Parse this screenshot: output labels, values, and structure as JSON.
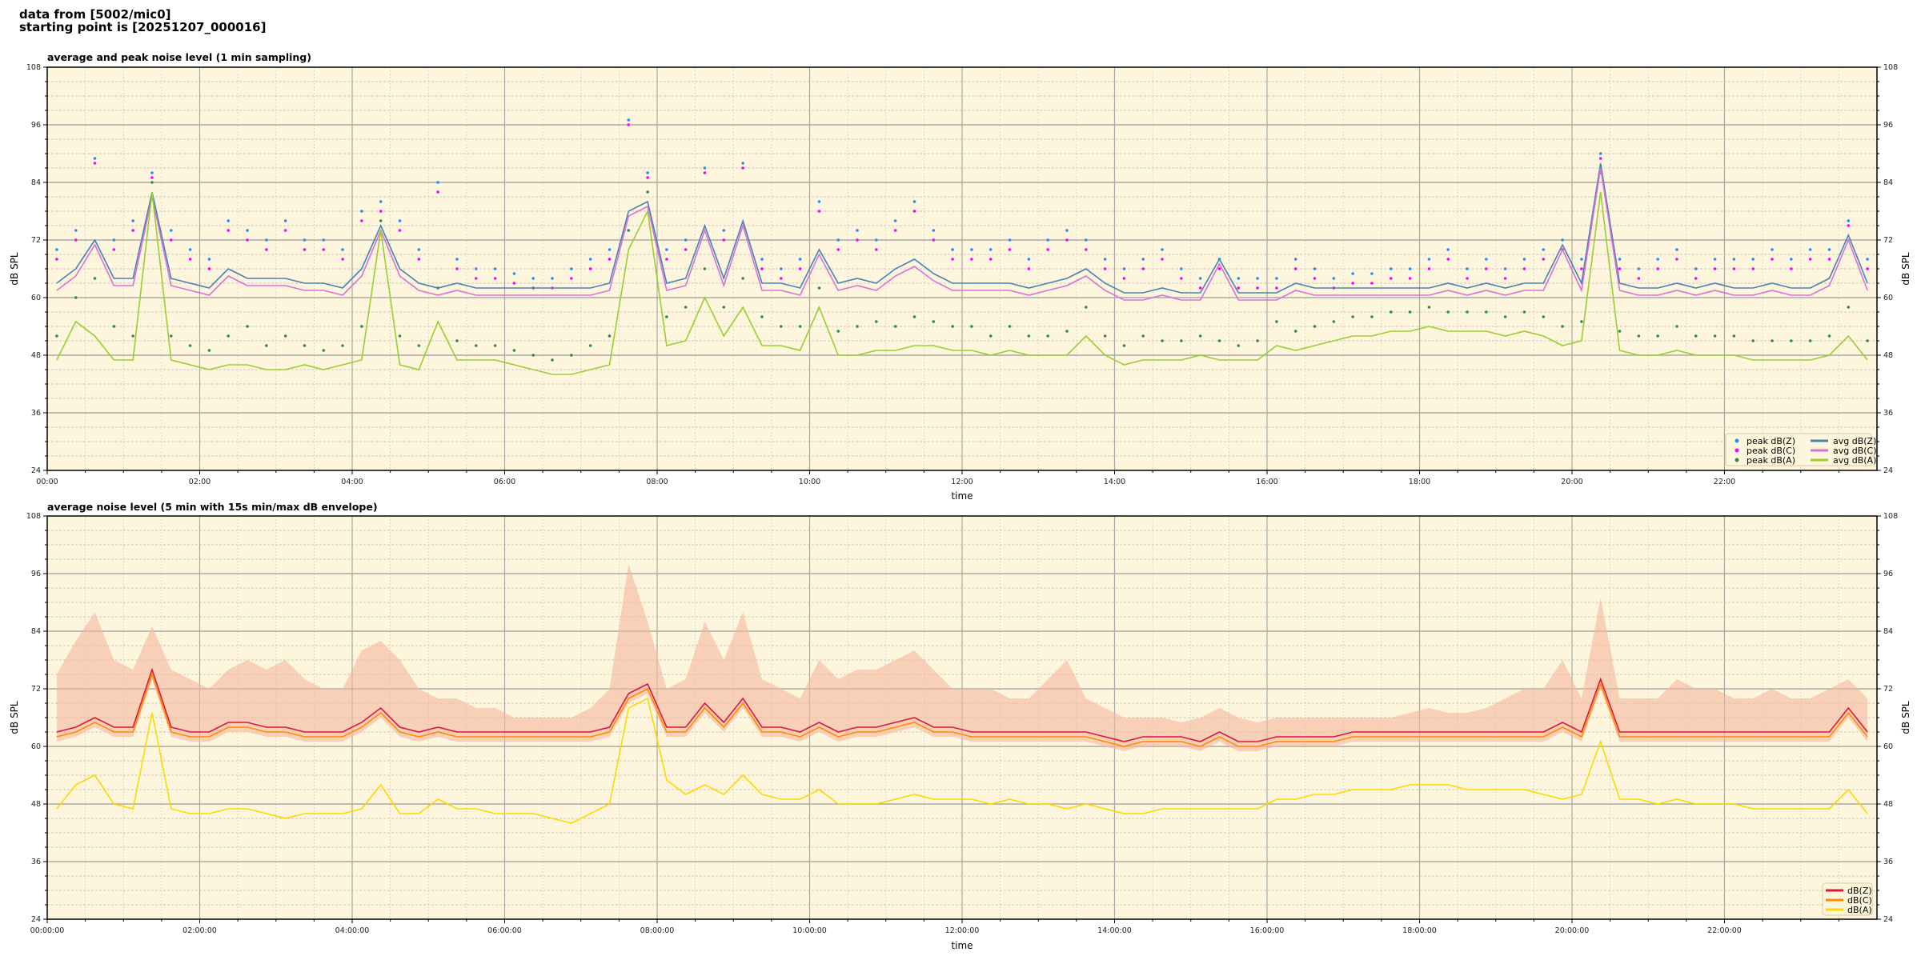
{
  "header": {
    "line1": "data from [5002/mic0]",
    "line2": "starting point is [20251207_000016]"
  },
  "colors": {
    "plot_bg": "#fef6dc",
    "peak_z": "#1e90ff",
    "peak_c": "#ff00ff",
    "peak_a": "#2e8b57",
    "avg_z": "#4682b4",
    "avg_c": "#da70d6",
    "avg_a": "#9acd32",
    "z": "#dc143c",
    "c": "#ff8c00",
    "a": "#ffd700",
    "envelope": "#f4b8a0"
  },
  "chart_data": [
    {
      "type": "line",
      "title": "average and peak noise level (1 min sampling)",
      "xlabel": "time",
      "ylabel": "dB SPL",
      "ylabel_right": "dB SPL",
      "ylim": [
        24,
        108
      ],
      "yticks": [
        "24",
        "36",
        "48",
        "60",
        "72",
        "84",
        "96",
        "108"
      ],
      "xlim_hours": [
        0,
        24
      ],
      "xticks": [
        "00:00",
        "02:00",
        "04:00",
        "06:00",
        "08:00",
        "10:00",
        "12:00",
        "14:00",
        "16:00",
        "18:00",
        "20:00",
        "22:00"
      ],
      "grid": true,
      "legend_position": "bottom-right",
      "x_step_minutes": 15,
      "series": [
        {
          "name": "peak dB(Z)",
          "kind": "scatter",
          "values": [
            70,
            74,
            89,
            72,
            76,
            86,
            74,
            70,
            68,
            76,
            74,
            72,
            76,
            72,
            72,
            70,
            78,
            80,
            76,
            70,
            84,
            68,
            66,
            66,
            65,
            64,
            64,
            66,
            68,
            70,
            97,
            86,
            70,
            72,
            87,
            74,
            88,
            68,
            66,
            68,
            80,
            72,
            74,
            72,
            76,
            80,
            74,
            70,
            70,
            70,
            72,
            68,
            72,
            74,
            72,
            68,
            66,
            68,
            70,
            66,
            64,
            68,
            64,
            64,
            64,
            68,
            66,
            64,
            65,
            65,
            66,
            66,
            68,
            70,
            66,
            68,
            66,
            68,
            70,
            72,
            68,
            90,
            68,
            66,
            68,
            70,
            66,
            68,
            68,
            68,
            70,
            68,
            70,
            70,
            76,
            68
          ]
        },
        {
          "name": "peak dB(C)",
          "kind": "scatter",
          "values": [
            68,
            72,
            88,
            70,
            74,
            85,
            72,
            68,
            66,
            74,
            72,
            70,
            74,
            70,
            70,
            68,
            76,
            78,
            74,
            68,
            82,
            66,
            64,
            64,
            63,
            62,
            62,
            64,
            66,
            68,
            96,
            85,
            68,
            70,
            86,
            72,
            87,
            66,
            64,
            66,
            78,
            70,
            72,
            70,
            74,
            78,
            72,
            68,
            68,
            68,
            70,
            66,
            70,
            72,
            70,
            66,
            64,
            66,
            68,
            64,
            62,
            66,
            62,
            62,
            62,
            66,
            64,
            62,
            63,
            63,
            64,
            64,
            66,
            68,
            64,
            66,
            64,
            66,
            68,
            70,
            66,
            89,
            66,
            64,
            66,
            68,
            64,
            66,
            66,
            66,
            68,
            66,
            68,
            68,
            75,
            66
          ]
        },
        {
          "name": "peak dB(A)",
          "kind": "scatter",
          "values": [
            52,
            60,
            64,
            54,
            52,
            84,
            52,
            50,
            49,
            52,
            54,
            50,
            52,
            50,
            49,
            50,
            54,
            76,
            52,
            50,
            62,
            51,
            50,
            50,
            49,
            48,
            47,
            48,
            50,
            52,
            74,
            82,
            56,
            58,
            66,
            58,
            64,
            56,
            54,
            54,
            62,
            53,
            54,
            55,
            54,
            56,
            55,
            54,
            54,
            52,
            54,
            52,
            52,
            53,
            58,
            52,
            50,
            52,
            51,
            51,
            52,
            51,
            50,
            51,
            55,
            53,
            54,
            55,
            56,
            56,
            57,
            57,
            58,
            57,
            57,
            57,
            56,
            57,
            56,
            54,
            55,
            86,
            53,
            52,
            52,
            54,
            52,
            52,
            52,
            51,
            51,
            51,
            51,
            52,
            58,
            51
          ]
        },
        {
          "name": "avg dB(Z)",
          "kind": "line",
          "values": [
            63,
            66,
            72,
            64,
            64,
            82,
            64,
            63,
            62,
            66,
            64,
            64,
            64,
            63,
            63,
            62,
            66,
            75,
            66,
            63,
            62,
            63,
            62,
            62,
            62,
            62,
            62,
            62,
            62,
            63,
            78,
            80,
            63,
            64,
            75,
            64,
            76,
            63,
            63,
            62,
            70,
            63,
            64,
            63,
            66,
            68,
            65,
            63,
            63,
            63,
            63,
            62,
            63,
            64,
            66,
            63,
            61,
            61,
            62,
            61,
            61,
            68,
            61,
            61,
            61,
            63,
            62,
            62,
            62,
            62,
            62,
            62,
            62,
            63,
            62,
            63,
            62,
            63,
            63,
            71,
            63,
            88,
            63,
            62,
            62,
            63,
            62,
            63,
            62,
            62,
            63,
            62,
            62,
            64,
            73,
            63
          ]
        },
        {
          "name": "avg dB(C)",
          "kind": "line",
          "values": [
            61.5,
            64.5,
            71,
            62.5,
            62.5,
            81,
            62.5,
            61.5,
            60.5,
            64.5,
            62.5,
            62.5,
            62.5,
            61.5,
            61.5,
            60.5,
            64.5,
            74,
            64.5,
            61.5,
            60.5,
            61.5,
            60.5,
            60.5,
            60.5,
            60.5,
            60.5,
            60.5,
            60.5,
            61.5,
            77,
            79,
            61.5,
            62.5,
            74,
            62.5,
            75,
            61.5,
            61.5,
            60.5,
            69,
            61.5,
            62.5,
            61.5,
            64.5,
            66.5,
            63.5,
            61.5,
            61.5,
            61.5,
            61.5,
            60.5,
            61.5,
            62.5,
            64.5,
            61.5,
            59.5,
            59.5,
            60.5,
            59.5,
            59.5,
            67,
            59.5,
            59.5,
            59.5,
            61.5,
            60.5,
            60.5,
            60.5,
            60.5,
            60.5,
            60.5,
            60.5,
            61.5,
            60.5,
            61.5,
            60.5,
            61.5,
            61.5,
            70,
            61.5,
            87,
            61.5,
            60.5,
            60.5,
            61.5,
            60.5,
            61.5,
            60.5,
            60.5,
            61.5,
            60.5,
            60.5,
            62.5,
            72,
            61.5
          ]
        },
        {
          "name": "avg dB(A)",
          "kind": "line",
          "values": [
            47,
            55,
            52,
            47,
            47,
            82,
            47,
            46,
            45,
            46,
            46,
            45,
            45,
            46,
            45,
            46,
            47,
            74,
            46,
            45,
            55,
            47,
            47,
            47,
            46,
            45,
            44,
            44,
            45,
            46,
            70,
            78,
            50,
            51,
            60,
            52,
            58,
            50,
            50,
            49,
            58,
            48,
            48,
            49,
            49,
            50,
            50,
            49,
            49,
            48,
            49,
            48,
            48,
            48,
            52,
            48,
            46,
            47,
            47,
            47,
            48,
            47,
            47,
            47,
            50,
            49,
            50,
            51,
            52,
            52,
            53,
            53,
            54,
            53,
            53,
            53,
            52,
            53,
            52,
            50,
            51,
            82,
            49,
            48,
            48,
            49,
            48,
            48,
            48,
            47,
            47,
            47,
            47,
            48,
            52,
            47
          ]
        }
      ]
    },
    {
      "type": "line",
      "title": "average noise level (5 min with 15s min/max dB envelope)",
      "xlabel": "time",
      "ylabel": "dB SPL",
      "ylabel_right": "dB SPL",
      "ylim": [
        24,
        108
      ],
      "yticks": [
        "24",
        "36",
        "48",
        "60",
        "72",
        "84",
        "96",
        "108"
      ],
      "xlim_hours": [
        0,
        24
      ],
      "xticks": [
        "00:00:00",
        "02:00:00",
        "04:00:00",
        "06:00:00",
        "08:00:00",
        "10:00:00",
        "12:00:00",
        "14:00:00",
        "16:00:00",
        "18:00:00",
        "20:00:00",
        "22:00:00"
      ],
      "grid": true,
      "legend_position": "bottom-right",
      "x_step_minutes": 15,
      "envelope_max": [
        75,
        82,
        88,
        78,
        76,
        85,
        76,
        74,
        72,
        76,
        78,
        76,
        78,
        74,
        72,
        72,
        80,
        82,
        78,
        72,
        70,
        70,
        68,
        68,
        66,
        66,
        66,
        66,
        68,
        72,
        98,
        86,
        72,
        74,
        86,
        78,
        88,
        74,
        72,
        70,
        78,
        74,
        76,
        76,
        78,
        80,
        76,
        72,
        72,
        72,
        70,
        70,
        74,
        78,
        70,
        68,
        66,
        66,
        66,
        65,
        66,
        68,
        66,
        65,
        66,
        66,
        66,
        66,
        66,
        66,
        66,
        67,
        68,
        67,
        67,
        68,
        70,
        72,
        72,
        78,
        70,
        91,
        70,
        70,
        70,
        74,
        72,
        72,
        70,
        70,
        72,
        70,
        70,
        72,
        74,
        70
      ],
      "envelope_min": [
        61,
        62,
        64,
        62,
        62,
        74,
        62,
        61,
        61,
        63,
        63,
        62,
        62,
        61,
        61,
        61,
        63,
        66,
        62,
        61,
        62,
        61,
        61,
        61,
        61,
        61,
        61,
        61,
        61,
        62,
        69,
        71,
        62,
        62,
        67,
        63,
        68,
        62,
        62,
        61,
        63,
        61,
        62,
        62,
        63,
        64,
        62,
        62,
        61,
        61,
        61,
        61,
        61,
        61,
        61,
        60,
        59,
        60,
        60,
        60,
        59,
        61,
        59,
        59,
        60,
        60,
        60,
        60,
        61,
        61,
        61,
        61,
        61,
        61,
        61,
        61,
        61,
        61,
        61,
        63,
        61,
        72,
        61,
        61,
        61,
        61,
        61,
        61,
        61,
        61,
        61,
        61,
        61,
        61,
        66,
        61
      ],
      "series": [
        {
          "name": "dB(Z)",
          "values": [
            63,
            64,
            66,
            64,
            64,
            76,
            64,
            63,
            63,
            65,
            65,
            64,
            64,
            63,
            63,
            63,
            65,
            68,
            64,
            63,
            64,
            63,
            63,
            63,
            63,
            63,
            63,
            63,
            63,
            64,
            71,
            73,
            64,
            64,
            69,
            65,
            70,
            64,
            64,
            63,
            65,
            63,
            64,
            64,
            65,
            66,
            64,
            64,
            63,
            63,
            63,
            63,
            63,
            63,
            63,
            62,
            61,
            62,
            62,
            62,
            61,
            63,
            61,
            61,
            62,
            62,
            62,
            62,
            63,
            63,
            63,
            63,
            63,
            63,
            63,
            63,
            63,
            63,
            63,
            65,
            63,
            74,
            63,
            63,
            63,
            63,
            63,
            63,
            63,
            63,
            63,
            63,
            63,
            63,
            68,
            63
          ]
        },
        {
          "name": "dB(C)",
          "values": [
            62,
            63,
            65,
            63,
            63,
            75,
            63,
            62,
            62,
            64,
            64,
            63,
            63,
            62,
            62,
            62,
            64,
            67,
            63,
            62,
            63,
            62,
            62,
            62,
            62,
            62,
            62,
            62,
            62,
            63,
            70,
            72,
            63,
            63,
            68,
            64,
            69,
            63,
            63,
            62,
            64,
            62,
            63,
            63,
            64,
            65,
            63,
            63,
            62,
            62,
            62,
            62,
            62,
            62,
            62,
            61,
            60,
            61,
            61,
            61,
            60,
            62,
            60,
            60,
            61,
            61,
            61,
            61,
            62,
            62,
            62,
            62,
            62,
            62,
            62,
            62,
            62,
            62,
            62,
            64,
            62,
            73,
            62,
            62,
            62,
            62,
            62,
            62,
            62,
            62,
            62,
            62,
            62,
            62,
            67,
            62
          ]
        },
        {
          "name": "dB(A)",
          "values": [
            47,
            52,
            54,
            48,
            47,
            67,
            47,
            46,
            46,
            47,
            47,
            46,
            45,
            46,
            46,
            46,
            47,
            52,
            46,
            46,
            49,
            47,
            47,
            46,
            46,
            46,
            45,
            44,
            46,
            48,
            68,
            70,
            53,
            50,
            52,
            50,
            54,
            50,
            49,
            49,
            51,
            48,
            48,
            48,
            49,
            50,
            49,
            49,
            49,
            48,
            49,
            48,
            48,
            47,
            48,
            47,
            46,
            46,
            47,
            47,
            47,
            47,
            47,
            47,
            49,
            49,
            50,
            50,
            51,
            51,
            51,
            52,
            52,
            52,
            51,
            51,
            51,
            51,
            50,
            49,
            50,
            61,
            49,
            49,
            48,
            49,
            48,
            48,
            48,
            47,
            47,
            47,
            47,
            47,
            51,
            46
          ]
        }
      ]
    }
  ]
}
